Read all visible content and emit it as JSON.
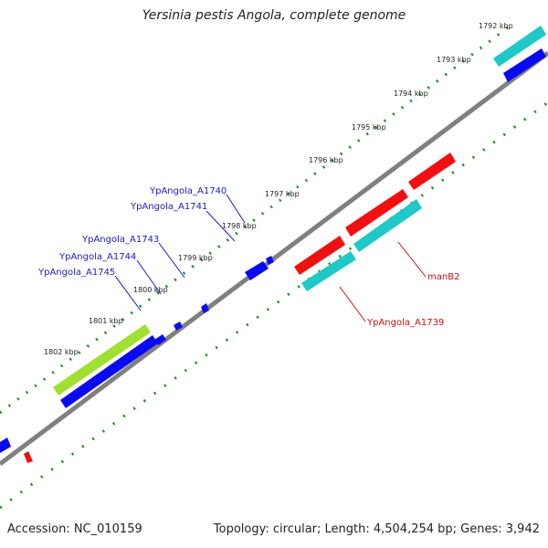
{
  "title": "Yersinia pestis Angola, complete genome",
  "footer": {
    "accession": "Accession: NC_010159",
    "summary": "Topology: circular; Length: 4,504,254 bp; Genes: 3,942"
  },
  "ticks": [
    {
      "label": "1792 kbp"
    },
    {
      "label": "1793 kbp"
    },
    {
      "label": "1794 kbp"
    },
    {
      "label": "1795 kbp"
    },
    {
      "label": "1796 kbp"
    },
    {
      "label": "1797 kbp"
    },
    {
      "label": "1798 kbp"
    },
    {
      "label": "1799 kbp"
    },
    {
      "label": "1800 kbp"
    },
    {
      "label": "1801 kbp"
    },
    {
      "label": "1802 kbp"
    }
  ],
  "gene_labels": [
    {
      "text": "YpAngola_A1740",
      "color": "#1a1ac8"
    },
    {
      "text": "YpAngola_A1741",
      "color": "#1a1ac8"
    },
    {
      "text": "YpAngola_A1743",
      "color": "#1a1ac8"
    },
    {
      "text": "YpAngola_A1744",
      "color": "#1a1ac8"
    },
    {
      "text": "YpAngola_A1745",
      "color": "#1a1ac8"
    },
    {
      "text": "manB2",
      "color": "#cc1010"
    },
    {
      "text": "YpAngola_A1739",
      "color": "#cc1010"
    }
  ],
  "colors": {
    "backbone": "#808080",
    "tick_dots": "#1e8c1e",
    "blue_gene": "#0a0af0",
    "red_gene": "#f01010",
    "cyan_gene": "#20c8c8",
    "lime_gene": "#a0e030"
  }
}
